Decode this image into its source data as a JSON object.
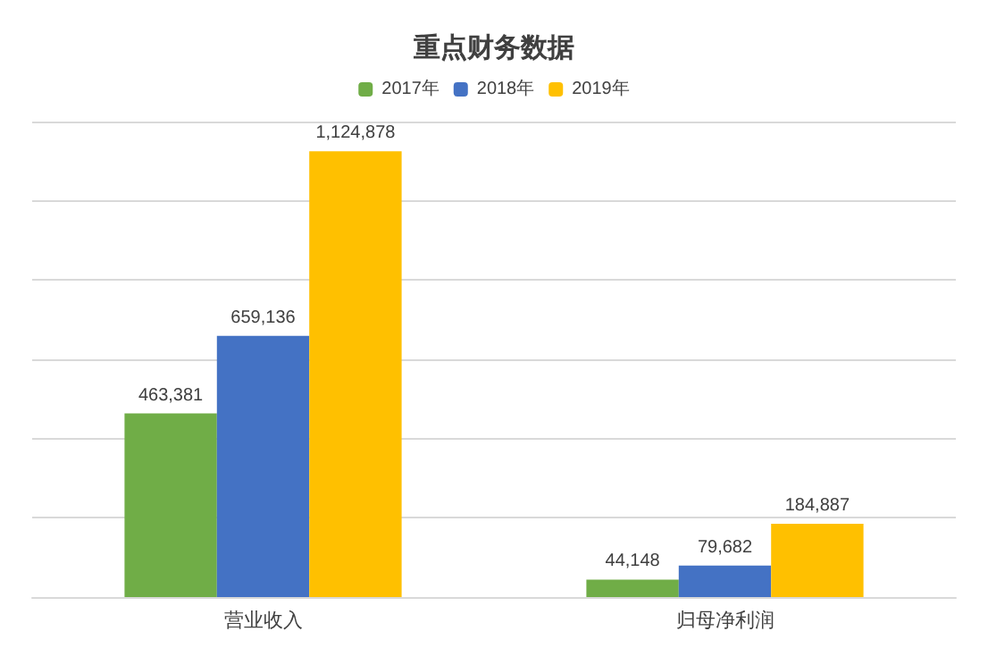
{
  "chart_data": {
    "type": "bar",
    "title": "重点财务数据",
    "categories": [
      "营业收入",
      "归母净利润"
    ],
    "series": [
      {
        "name": "2017年",
        "color": "#70ad47",
        "values": [
          463381,
          44148
        ],
        "value_labels": [
          "463,381",
          "44,148"
        ]
      },
      {
        "name": "2018年",
        "color": "#4472c4",
        "values": [
          659136,
          79682
        ],
        "value_labels": [
          "659,136",
          "79,682"
        ]
      },
      {
        "name": "2019年",
        "color": "#ffc000",
        "values": [
          1124878,
          184887
        ],
        "value_labels": [
          "1,124,878",
          "184,887"
        ]
      }
    ],
    "grid": "y",
    "legend": "top",
    "tick_labels": "x"
  }
}
